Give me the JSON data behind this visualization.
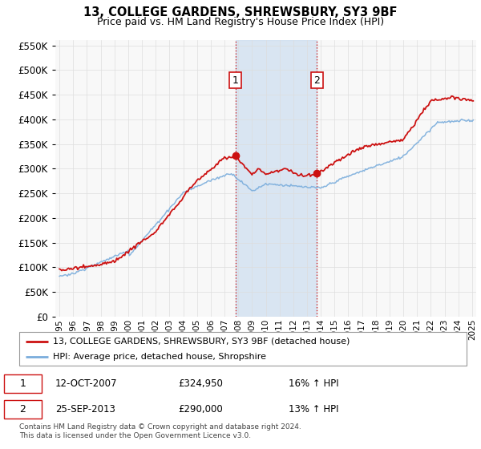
{
  "title": "13, COLLEGE GARDENS, SHREWSBURY, SY3 9BF",
  "subtitle": "Price paid vs. HM Land Registry's House Price Index (HPI)",
  "legend_line1": "13, COLLEGE GARDENS, SHREWSBURY, SY3 9BF (detached house)",
  "legend_line2": "HPI: Average price, detached house, Shropshire",
  "transaction1_date": "12-OCT-2007",
  "transaction1_price": 324950,
  "transaction1_label": "£324,950",
  "transaction1_pct": "16% ↑ HPI",
  "transaction2_date": "25-SEP-2013",
  "transaction2_price": 290000,
  "transaction2_label": "£290,000",
  "transaction2_pct": "13% ↑ HPI",
  "footer": "Contains HM Land Registry data © Crown copyright and database right 2024.\nThis data is licensed under the Open Government Licence v3.0.",
  "hpi_color": "#7aaddc",
  "price_color": "#cc1111",
  "marker1_x": 2007.79,
  "marker2_x": 2013.73,
  "ylim_max": 560000,
  "xlim_start": 1994.7,
  "xlim_end": 2025.3,
  "background_plot": "#f8f8f8",
  "background_fig": "#ffffff",
  "shade_color": "#ccddf0",
  "grid_color": "#dddddd"
}
